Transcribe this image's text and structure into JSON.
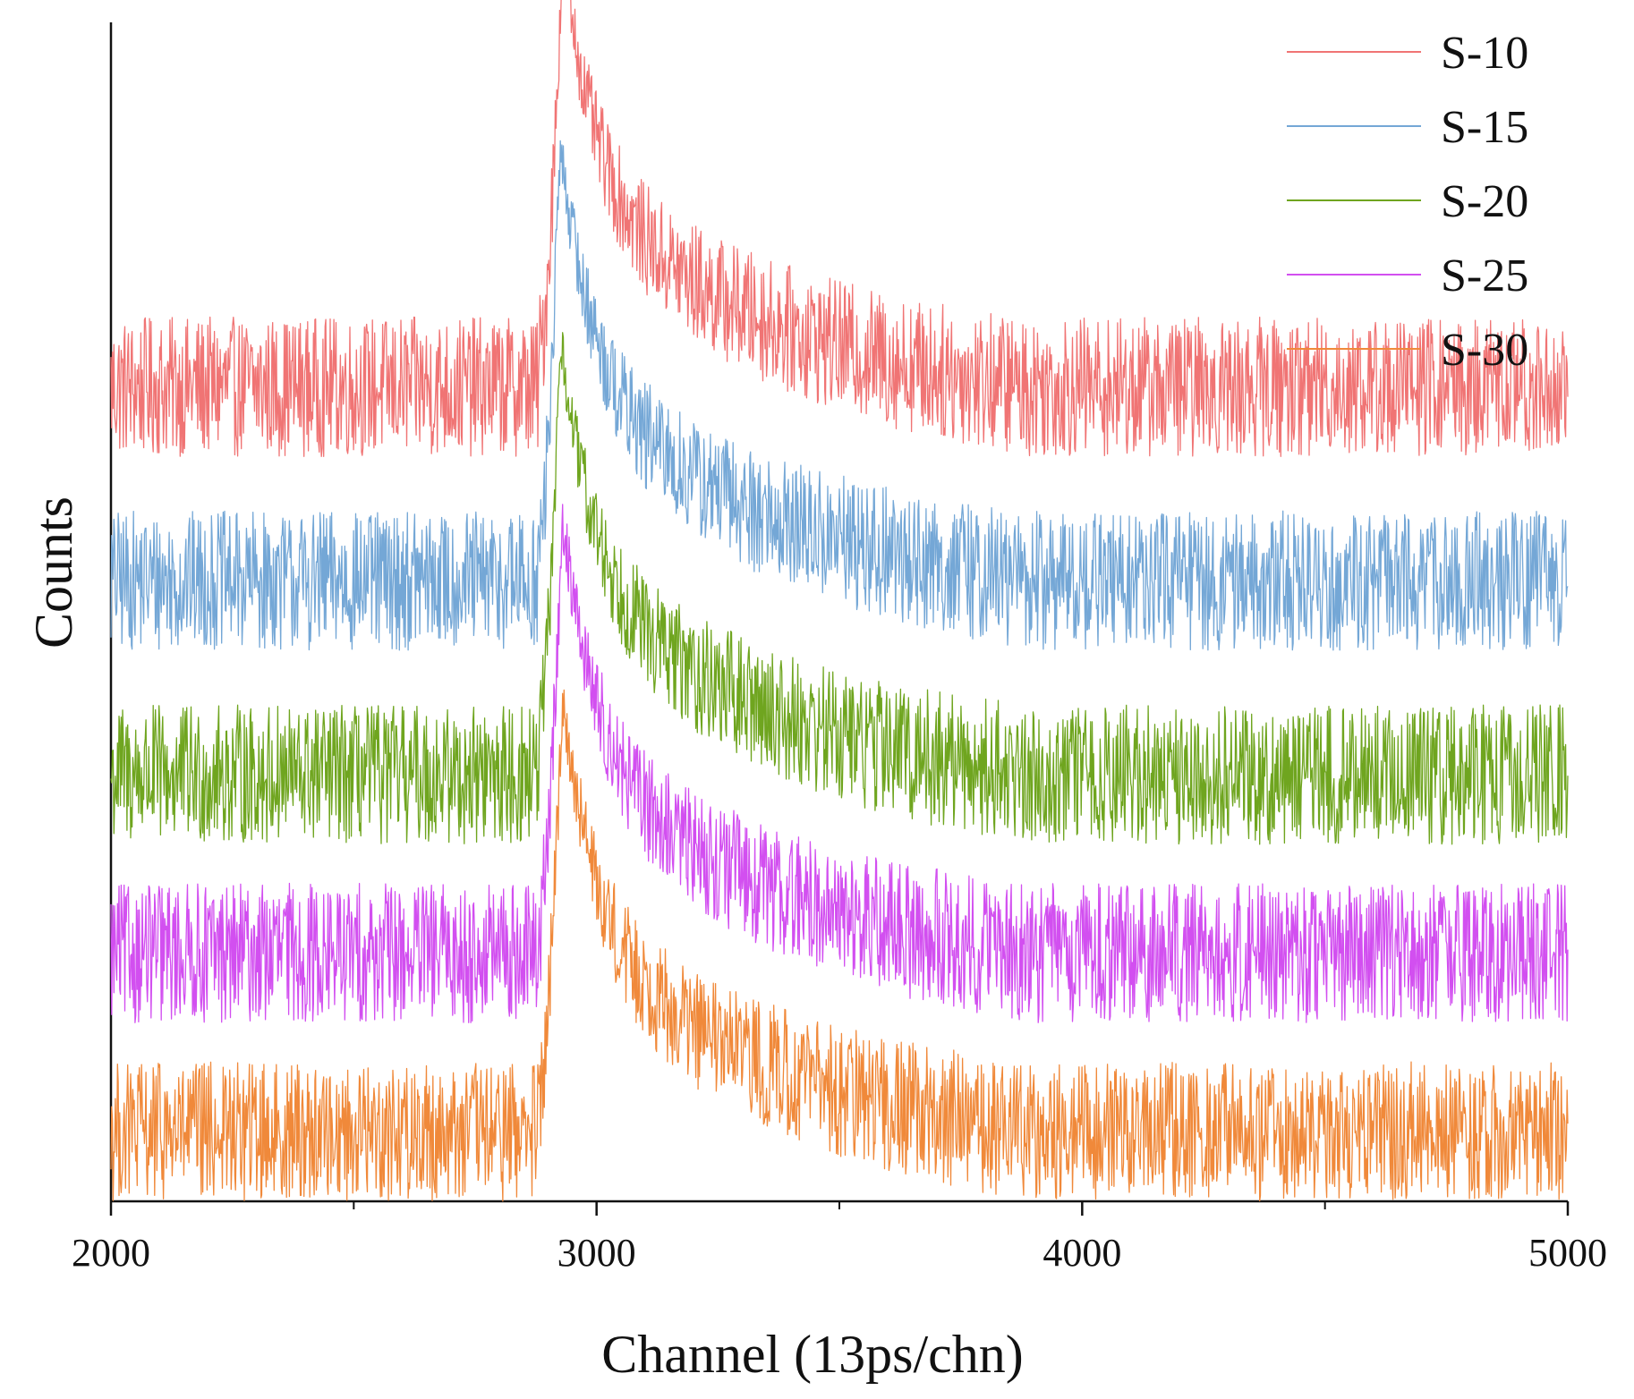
{
  "chart_data": {
    "type": "line",
    "title": "",
    "xlabel": "Channel (13ps/chn)",
    "ylabel": "Counts",
    "xlim": [
      2000,
      5000
    ],
    "x_major_ticks": [
      2000,
      3000,
      4000,
      5000
    ],
    "x_minor_ticks": [
      2500,
      3500,
      4500
    ],
    "y_ticks_shown": false,
    "grid": false,
    "legend_position": "top-right",
    "note": "Curves are vertically offset stacked spectra; y axis has no numeric scale.",
    "series": [
      {
        "name": "S-10",
        "color": "#f07474",
        "baseline_level": 4.0,
        "peak_channel": 2930,
        "peak_height": 2.8,
        "onset_channel": 2880,
        "shoulder_height": 1.2,
        "tail_end_channel": 3900,
        "noise_amplitude": 0.45
      },
      {
        "name": "S-15",
        "color": "#74a7d6",
        "baseline_level": 2.75,
        "peak_channel": 2925,
        "peak_height": 2.8,
        "onset_channel": 2880,
        "shoulder_height": 1.2,
        "tail_end_channel": 3900,
        "noise_amplitude": 0.45
      },
      {
        "name": "S-20",
        "color": "#6fa51f",
        "baseline_level": 1.5,
        "peak_channel": 2925,
        "peak_height": 2.8,
        "onset_channel": 2880,
        "shoulder_height": 1.2,
        "tail_end_channel": 3900,
        "noise_amplitude": 0.45
      },
      {
        "name": "S-25",
        "color": "#d24ff0",
        "baseline_level": 0.35,
        "peak_channel": 2930,
        "peak_height": 2.8,
        "onset_channel": 2880,
        "shoulder_height": 1.2,
        "tail_end_channel": 3900,
        "noise_amplitude": 0.45
      },
      {
        "name": "S-30",
        "color": "#f0893a",
        "baseline_level": -0.8,
        "peak_channel": 2930,
        "peak_height": 2.8,
        "onset_channel": 2880,
        "shoulder_height": 1.2,
        "tail_end_channel": 3900,
        "noise_amplitude": 0.45
      }
    ],
    "ylim": [
      -1.25,
      6.35
    ]
  }
}
